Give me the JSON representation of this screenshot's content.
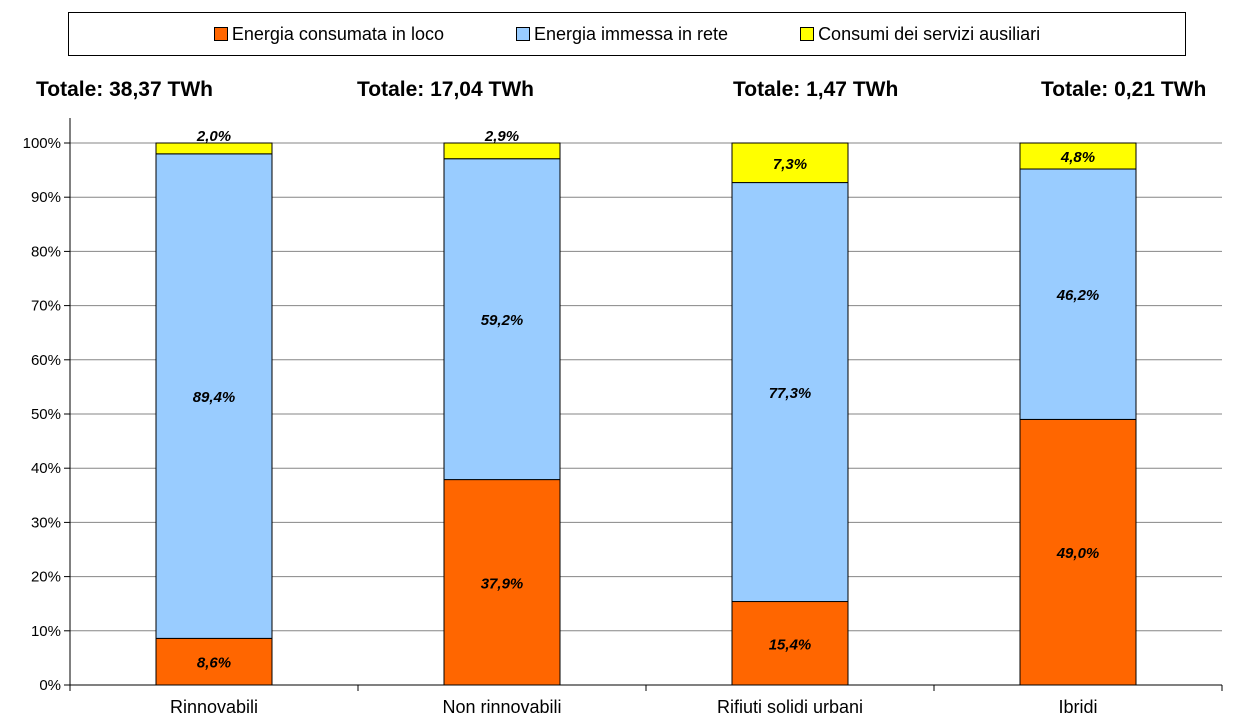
{
  "legend": [
    {
      "label": "Energia consumata in loco",
      "color": "#FF6600"
    },
    {
      "label": "Energia immessa in rete",
      "color": "#99CCFF"
    },
    {
      "label": "Consumi dei servizi ausiliari",
      "color": "#FFFF00"
    }
  ],
  "totals": [
    "Totale: 38,37 TWh",
    "Totale: 17,04 TWh",
    "Totale: 1,47 TWh",
    "Totale: 0,21 TWh"
  ],
  "chart_data": {
    "type": "bar",
    "stacked": true,
    "categories": [
      "Rinnovabili",
      "Non rinnovabili",
      "Rifiuti solidi urbani",
      "Ibridi"
    ],
    "series": [
      {
        "name": "Energia consumata in loco",
        "color": "#FF6600",
        "values": [
          8.6,
          37.9,
          15.4,
          49.0
        ],
        "labels": [
          "8,6%",
          "37,9%",
          "15,4%",
          "49,0%"
        ]
      },
      {
        "name": "Energia immessa in rete",
        "color": "#99CCFF",
        "values": [
          89.4,
          59.2,
          77.3,
          46.2
        ],
        "labels": [
          "89,4%",
          "59,2%",
          "77,3%",
          "46,2%"
        ]
      },
      {
        "name": "Consumi dei servizi ausiliari",
        "color": "#FFFF00",
        "values": [
          2.0,
          2.9,
          7.3,
          4.8
        ],
        "labels": [
          "2,0%",
          "2,9%",
          "7,3%",
          "4,8%"
        ]
      }
    ],
    "ylim": [
      0,
      100
    ],
    "yticks": [
      "0%",
      "10%",
      "20%",
      "30%",
      "40%",
      "50%",
      "60%",
      "70%",
      "80%",
      "90%",
      "100%"
    ],
    "grid": true,
    "legend_position": "top"
  }
}
